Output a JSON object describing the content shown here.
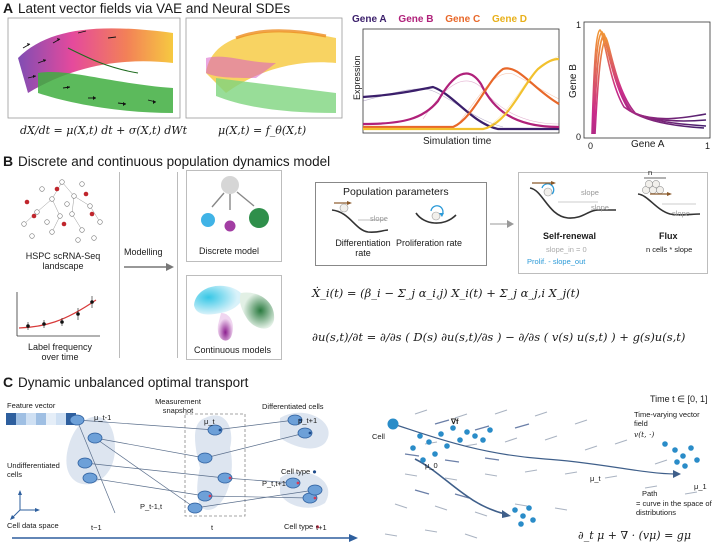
{
  "section_a": {
    "letter": "A",
    "title": "Latent vector fields via VAE and Neural SDEs",
    "eq_left": "dX/dt = μ(X,t) dt + σ(X,t) dWt",
    "eq_right": "μ(X,t) = f_θ(X,t)",
    "line_chart": {
      "genes": [
        "Gene A",
        "Gene B",
        "Gene C",
        "Gene D"
      ],
      "gene_colors": [
        "#3b1f6b",
        "#b0217a",
        "#e8682a",
        "#f2c12e"
      ],
      "ylabel": "Expression",
      "xlabel": "Simulation time"
    },
    "phase_chart": {
      "ylabel": "Gene B",
      "xlabel": "Gene A",
      "x_ticks": [
        "0",
        "1"
      ],
      "y_ticks": [
        "0",
        "1"
      ]
    }
  },
  "section_b": {
    "letter": "B",
    "title": "Discrete and continuous population dynamics model",
    "hspc_label": "HSPC scRNA-Seq landscape",
    "label_freq": "Label frequency over time",
    "modelling": "Modelling",
    "discrete_model": "Discrete model",
    "continuous_models": "Continuous models",
    "population_params": "Population parameters",
    "diff_rate": "Differentiation rate",
    "prolif_rate": "Proliferation rate",
    "slope": "slope",
    "self_renewal": "Self-renewal",
    "self_renewal_eq": "slope_in = 0",
    "prolif_slope": "Prolif. - slope_out",
    "flux": "Flux",
    "flux_eq": "n cells * slope",
    "n_label": "n",
    "eq1": "Ẋ_i(t) = (β_i − Σ_j α_i,j) X_i(t) + Σ_j α_j,i X_j(t)",
    "eq2": "∂u(s,t)/∂t = ∂/∂s ( D(s) ∂u(s,t)/∂s ) − ∂/∂s ( v(s) u(s,t) ) + g(s)u(s,t)"
  },
  "section_c": {
    "letter": "C",
    "title": "Dynamic unbalanced optimal transport",
    "feature_vector": "Feature vector",
    "measurement_snapshot": "Measurement snapshot",
    "differentiated_cells": "Differentiated cells",
    "undifferentiated_cells": "Undifferentiated cells",
    "cell_data_space": "Cell data space",
    "cell_type_blue": "Cell type",
    "cell_type_red": "Cell type",
    "mu_t_minus": "μ_t-1",
    "mu_t": "μ_t",
    "mu_t_plus": "μ_t+1",
    "p_t_minus": "P_t-1,t",
    "p_t_plus": "P_t,t+1",
    "t_minus": "t−1",
    "t": "t",
    "t_plus": "t+1",
    "cell": "Cell",
    "grad_f": "∇f",
    "mu_0": "μ_0",
    "mu_t_right": "μ_t",
    "mu_1": "μ_1",
    "time_range": "Time  t ∈ [0, 1]",
    "time_varying": "Time-varying vector field",
    "v_field": "v(t, ·)",
    "path": "Path",
    "path_desc": "= curve in the space of distributions",
    "continuity_eq": "∂_t μ + ∇ · (vμ) = gμ"
  }
}
